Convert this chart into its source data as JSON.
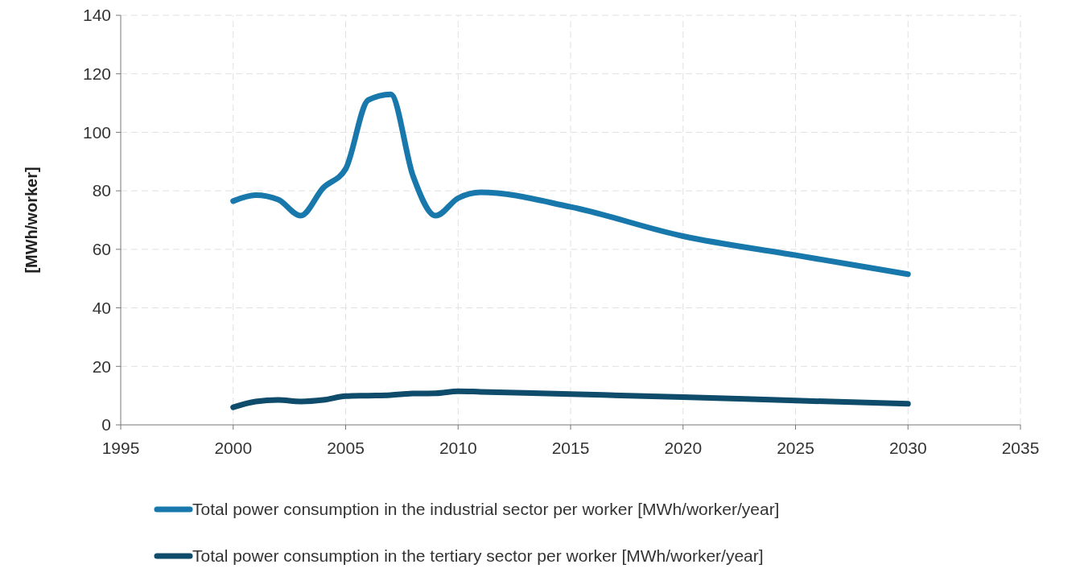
{
  "chart_data": {
    "type": "line",
    "ylabel": "[MWh/worker]",
    "x": [
      2000,
      2001,
      2002,
      2003,
      2004,
      2005,
      2006,
      2007,
      2008,
      2009,
      2010,
      2011,
      2015,
      2020,
      2025,
      2030
    ],
    "series": [
      {
        "name": "Total power consumption in the industrial sector per worker  [MWh/worker/year]",
        "color": "#1878ab",
        "values": [
          76.5,
          78.5,
          77,
          71.5,
          81,
          87.5,
          111,
          113,
          85,
          71.5,
          77.5,
          79.5,
          74.5,
          64.5,
          58,
          51.5
        ]
      },
      {
        "name": "Total power consumption in the tertiary sector per worker  [MWh/worker/year]",
        "color": "#0f4c6c",
        "values": [
          6,
          8,
          8.5,
          8,
          8.5,
          9.8,
          10,
          10.2,
          10.7,
          10.8,
          11.5,
          11.3,
          10.5,
          9.5,
          8.3,
          7.2
        ]
      }
    ],
    "xlim": [
      1995,
      2035
    ],
    "xticks": [
      1995,
      2000,
      2005,
      2010,
      2015,
      2020,
      2025,
      2030,
      2035
    ],
    "ylim": [
      0,
      140
    ],
    "yticks": [
      0,
      20,
      40,
      60,
      80,
      100,
      120,
      140
    ],
    "grid": true,
    "legend": "bottom",
    "marker": "none",
    "line_style": "solid"
  }
}
